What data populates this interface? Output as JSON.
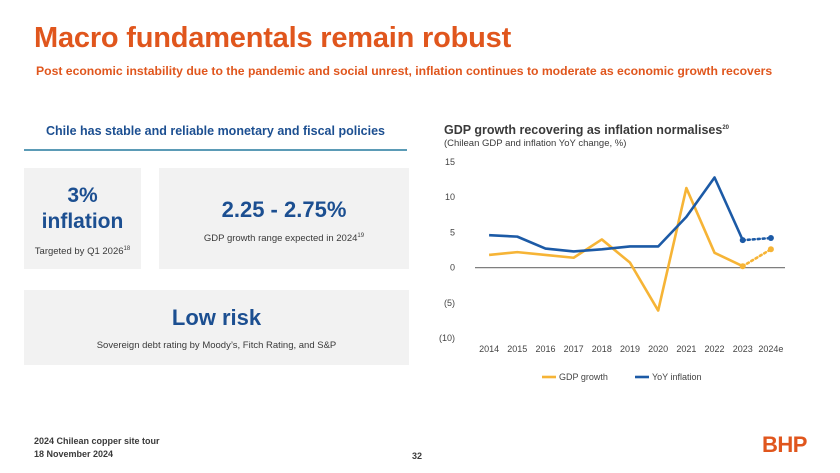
{
  "title": "Macro fundamentals remain robust",
  "subtitle": "Post economic instability due to the pandemic and social unrest, inflation continues to moderate as economic growth recovers",
  "left": {
    "heading": "Chile has stable and reliable monetary and fiscal policies",
    "cards": [
      {
        "big_line1": "3%",
        "big_line2": "inflation",
        "small": "Targeted by Q1 2026",
        "sup": "18"
      },
      {
        "big": "2.25 - 2.75%",
        "small": "GDP growth range expected in 2024",
        "sup": "19"
      },
      {
        "big": "Low risk",
        "small": "Sovereign debt rating by Moody’s, Fitch Rating, and S&P"
      }
    ]
  },
  "chart_header": {
    "title": "GDP growth recovering as inflation normalises",
    "title_sup": "20",
    "subtitle": "(Chilean GDP and inflation YoY change, %)"
  },
  "chart_data": {
    "type": "line",
    "x": [
      "2014",
      "2015",
      "2016",
      "2017",
      "2018",
      "2019",
      "2020",
      "2021",
      "2022",
      "2023",
      "2024e"
    ],
    "ylim": [
      -10,
      15
    ],
    "yticks": [
      15,
      10,
      5,
      0,
      -5,
      -10
    ],
    "ytick_labels": [
      "15",
      "10",
      "5",
      "0",
      "(5)",
      "(10)"
    ],
    "series": [
      {
        "name": "GDP growth",
        "color": "#f6b436",
        "values": [
          1.8,
          2.2,
          1.8,
          1.4,
          4.0,
          0.7,
          -6.1,
          11.3,
          2.1,
          0.2,
          2.6
        ],
        "projected_from_index": 9
      },
      {
        "name": "YoY inflation",
        "color": "#1c5aa6",
        "values": [
          4.6,
          4.4,
          2.7,
          2.3,
          2.6,
          3.0,
          3.0,
          7.2,
          12.8,
          3.9,
          4.2
        ],
        "projected_from_index": 9
      }
    ],
    "legend_position": "bottom"
  },
  "footer": {
    "line1": "2024 Chilean copper site tour",
    "line2": "18 November 2024",
    "page": "32",
    "logo": "BHP"
  }
}
